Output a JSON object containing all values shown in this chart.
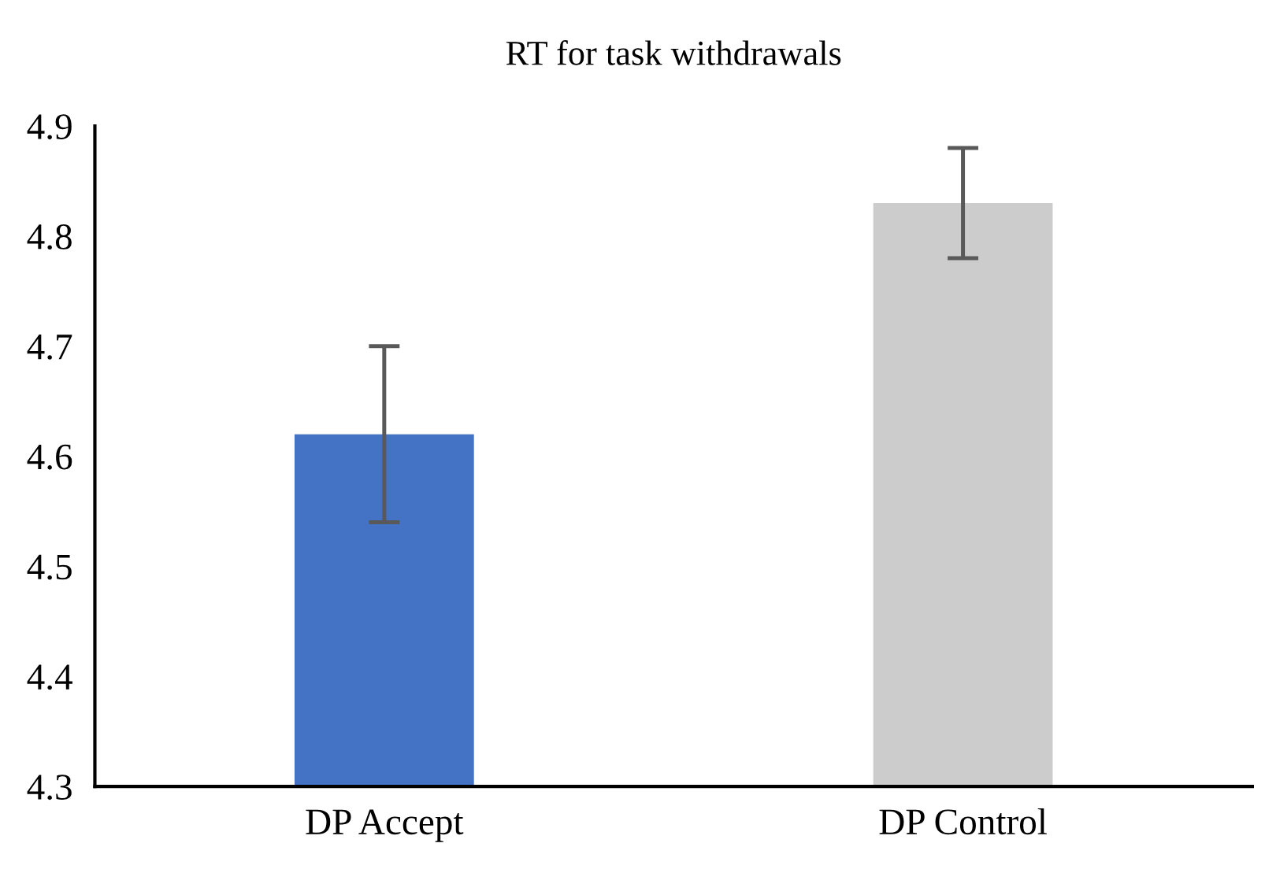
{
  "chart_data": {
    "type": "bar",
    "title": "RT for task withdrawals",
    "categories": [
      "DP Accept",
      "DP Control"
    ],
    "values": [
      4.62,
      4.83
    ],
    "colors": [
      "#4472c4",
      "#cccccc"
    ],
    "errors": [
      [
        4.54,
        4.7
      ],
      [
        4.78,
        4.88
      ]
    ],
    "ylim": [
      4.3,
      4.9
    ],
    "yticks": [
      4.3,
      4.4,
      4.5,
      4.6,
      4.7,
      4.8,
      4.9
    ],
    "grid": false,
    "legend": false
  }
}
